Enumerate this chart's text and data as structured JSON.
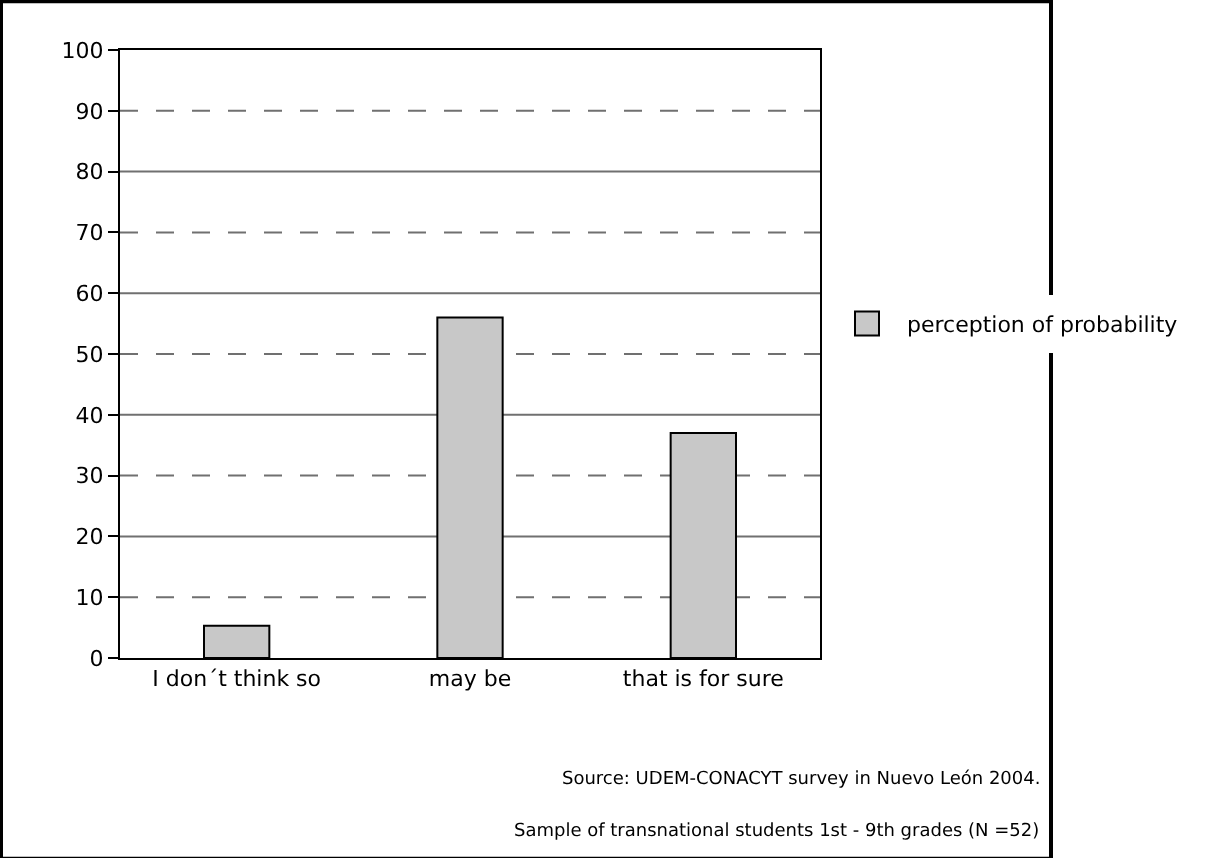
{
  "chart_data": {
    "type": "bar",
    "categories": [
      "I don´t think so",
      "may be",
      "that is for sure"
    ],
    "series": [
      {
        "name": "perception of probability",
        "color": "#c8c8c8",
        "values": [
          5.3,
          56,
          37
        ]
      }
    ],
    "ylim": [
      0,
      100
    ],
    "yticks": [
      0,
      10,
      20,
      30,
      40,
      50,
      60,
      70,
      80,
      90,
      100
    ],
    "grid": "y",
    "legend": "right",
    "annotations": [
      "Source: UDEM-CONACYT survey in Nuevo León 2004.",
      "Sample of transnational students 1st - 9th grades (N =52)"
    ]
  }
}
